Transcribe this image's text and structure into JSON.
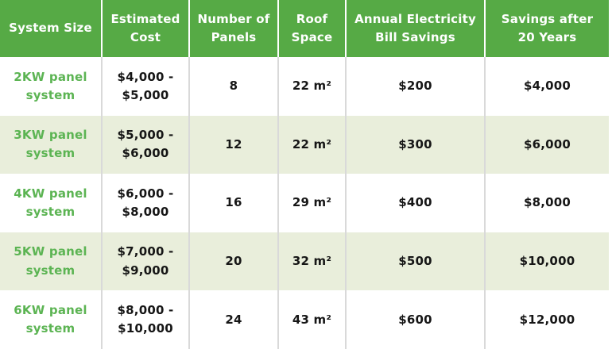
{
  "colors": {
    "header_bg": "#56aa45",
    "header_text": "#ffffff",
    "alt_row_bg": "#e9eedb",
    "system_size_text": "#5cb453",
    "body_text": "#161616",
    "body_divider": "#d9d9d9",
    "header_divider": "#ffffff"
  },
  "table": {
    "columns": [
      "System Size",
      "Estimated\nCost",
      "Number of\nPanels",
      "Roof\nSpace",
      "Annual Electricity\nBill Savings",
      "Savings after\n20 Years"
    ],
    "rows": [
      [
        "2KW panel\nsystem",
        "$4,000 -\n$5,000",
        "8",
        "22 m²",
        "$200",
        "$4,000"
      ],
      [
        "3KW panel\nsystem",
        "$5,000 -\n$6,000",
        "12",
        "22 m²",
        "$300",
        "$6,000"
      ],
      [
        "4KW panel\nsystem",
        "$6,000 -\n$8,000",
        "16",
        "29 m²",
        "$400",
        "$8,000"
      ],
      [
        "5KW panel\nsystem",
        "$7,000 -\n$9,000",
        "20",
        "32 m²",
        "$500",
        "$10,000"
      ],
      [
        "6KW panel\nsystem",
        "$8,000 -\n$10,000",
        "24",
        "43 m²",
        "$600",
        "$12,000"
      ]
    ]
  }
}
